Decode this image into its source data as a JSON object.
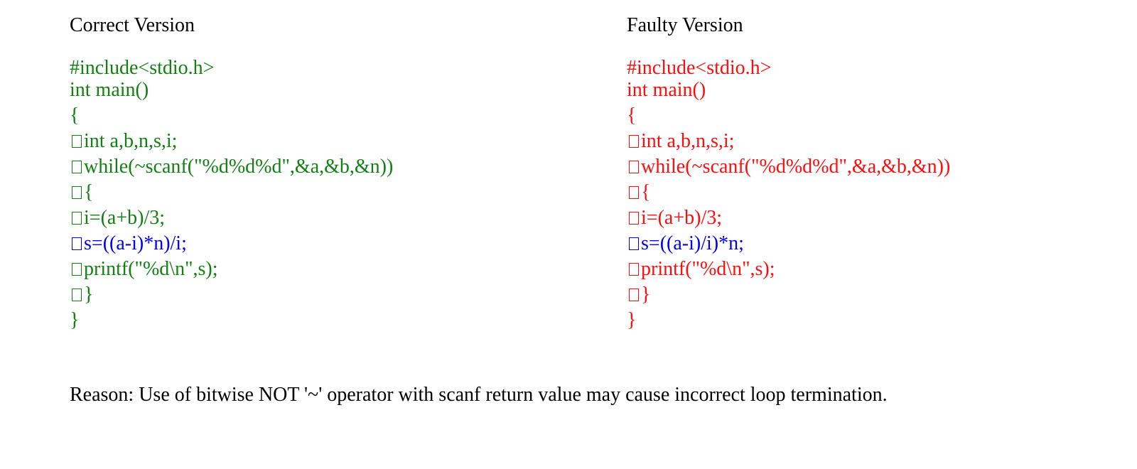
{
  "colors": {
    "correct": "#118011",
    "faulty": "#ff0d0d",
    "highlight": "#0000ee",
    "text": "#000000"
  },
  "correct": {
    "heading": "Correct Version",
    "lines": [
      {
        "indent": false,
        "text": "#include<stdio.h>",
        "highlight": false
      },
      {
        "indent": false,
        "text": "int main()",
        "highlight": false
      },
      {
        "indent": false,
        "text": "{",
        "highlight": false
      },
      {
        "indent": true,
        "text": "int a,b,n,s,i;",
        "highlight": false
      },
      {
        "indent": true,
        "text": "while(~scanf(\"%d%d%d\",&a,&b,&n))",
        "highlight": false
      },
      {
        "indent": true,
        "text": "{",
        "highlight": false
      },
      {
        "indent": true,
        "text": "i=(a+b)/3;",
        "highlight": false
      },
      {
        "indent": true,
        "text": "s=((a-i)*n)/i;",
        "highlight": true
      },
      {
        "indent": true,
        "text": "printf(\"%d\\n\",s);",
        "highlight": false
      },
      {
        "indent": true,
        "text": "}",
        "highlight": false
      },
      {
        "indent": false,
        "text": "}",
        "highlight": false
      }
    ]
  },
  "faulty": {
    "heading": "Faulty Version",
    "lines": [
      {
        "indent": false,
        "text": "#include<stdio.h>",
        "highlight": false
      },
      {
        "indent": false,
        "text": "int main()",
        "highlight": false
      },
      {
        "indent": false,
        "text": "{",
        "highlight": false
      },
      {
        "indent": true,
        "text": "int a,b,n,s,i;",
        "highlight": false
      },
      {
        "indent": true,
        "text": "while(~scanf(\"%d%d%d\",&a,&b,&n))",
        "highlight": false
      },
      {
        "indent": true,
        "text": "{",
        "highlight": false
      },
      {
        "indent": true,
        "text": "i=(a+b)/3;",
        "highlight": false
      },
      {
        "indent": true,
        "text": "s=((a-i)/i)*n;",
        "highlight": true
      },
      {
        "indent": true,
        "text": "printf(\"%d\\n\",s);",
        "highlight": false
      },
      {
        "indent": true,
        "text": "}",
        "highlight": false
      },
      {
        "indent": false,
        "text": "}",
        "highlight": false
      }
    ]
  },
  "reason": "Reason: Use of bitwise NOT '~' operator with scanf return value may cause incorrect loop termination."
}
